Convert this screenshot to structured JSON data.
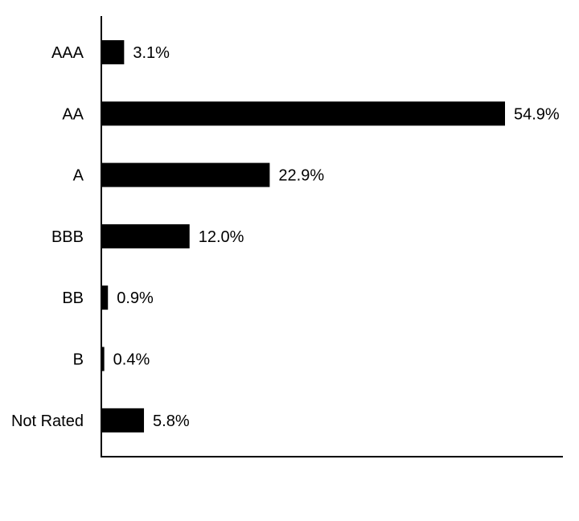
{
  "chart_data": {
    "type": "bar",
    "orientation": "horizontal",
    "title": "",
    "xlabel": "",
    "ylabel": "",
    "categories": [
      "AAA",
      "AA",
      "A",
      "BBB",
      "BB",
      "B",
      "Not Rated"
    ],
    "values": [
      3.1,
      54.9,
      22.9,
      12.0,
      0.9,
      0.4,
      5.8
    ],
    "value_labels": [
      "3.1%",
      "54.9%",
      "22.9%",
      "12.0%",
      "0.9%",
      "0.4%",
      "5.8%"
    ],
    "xlim": [
      0,
      60
    ],
    "grid": false,
    "legend": "none",
    "bar_color": "#000000"
  }
}
